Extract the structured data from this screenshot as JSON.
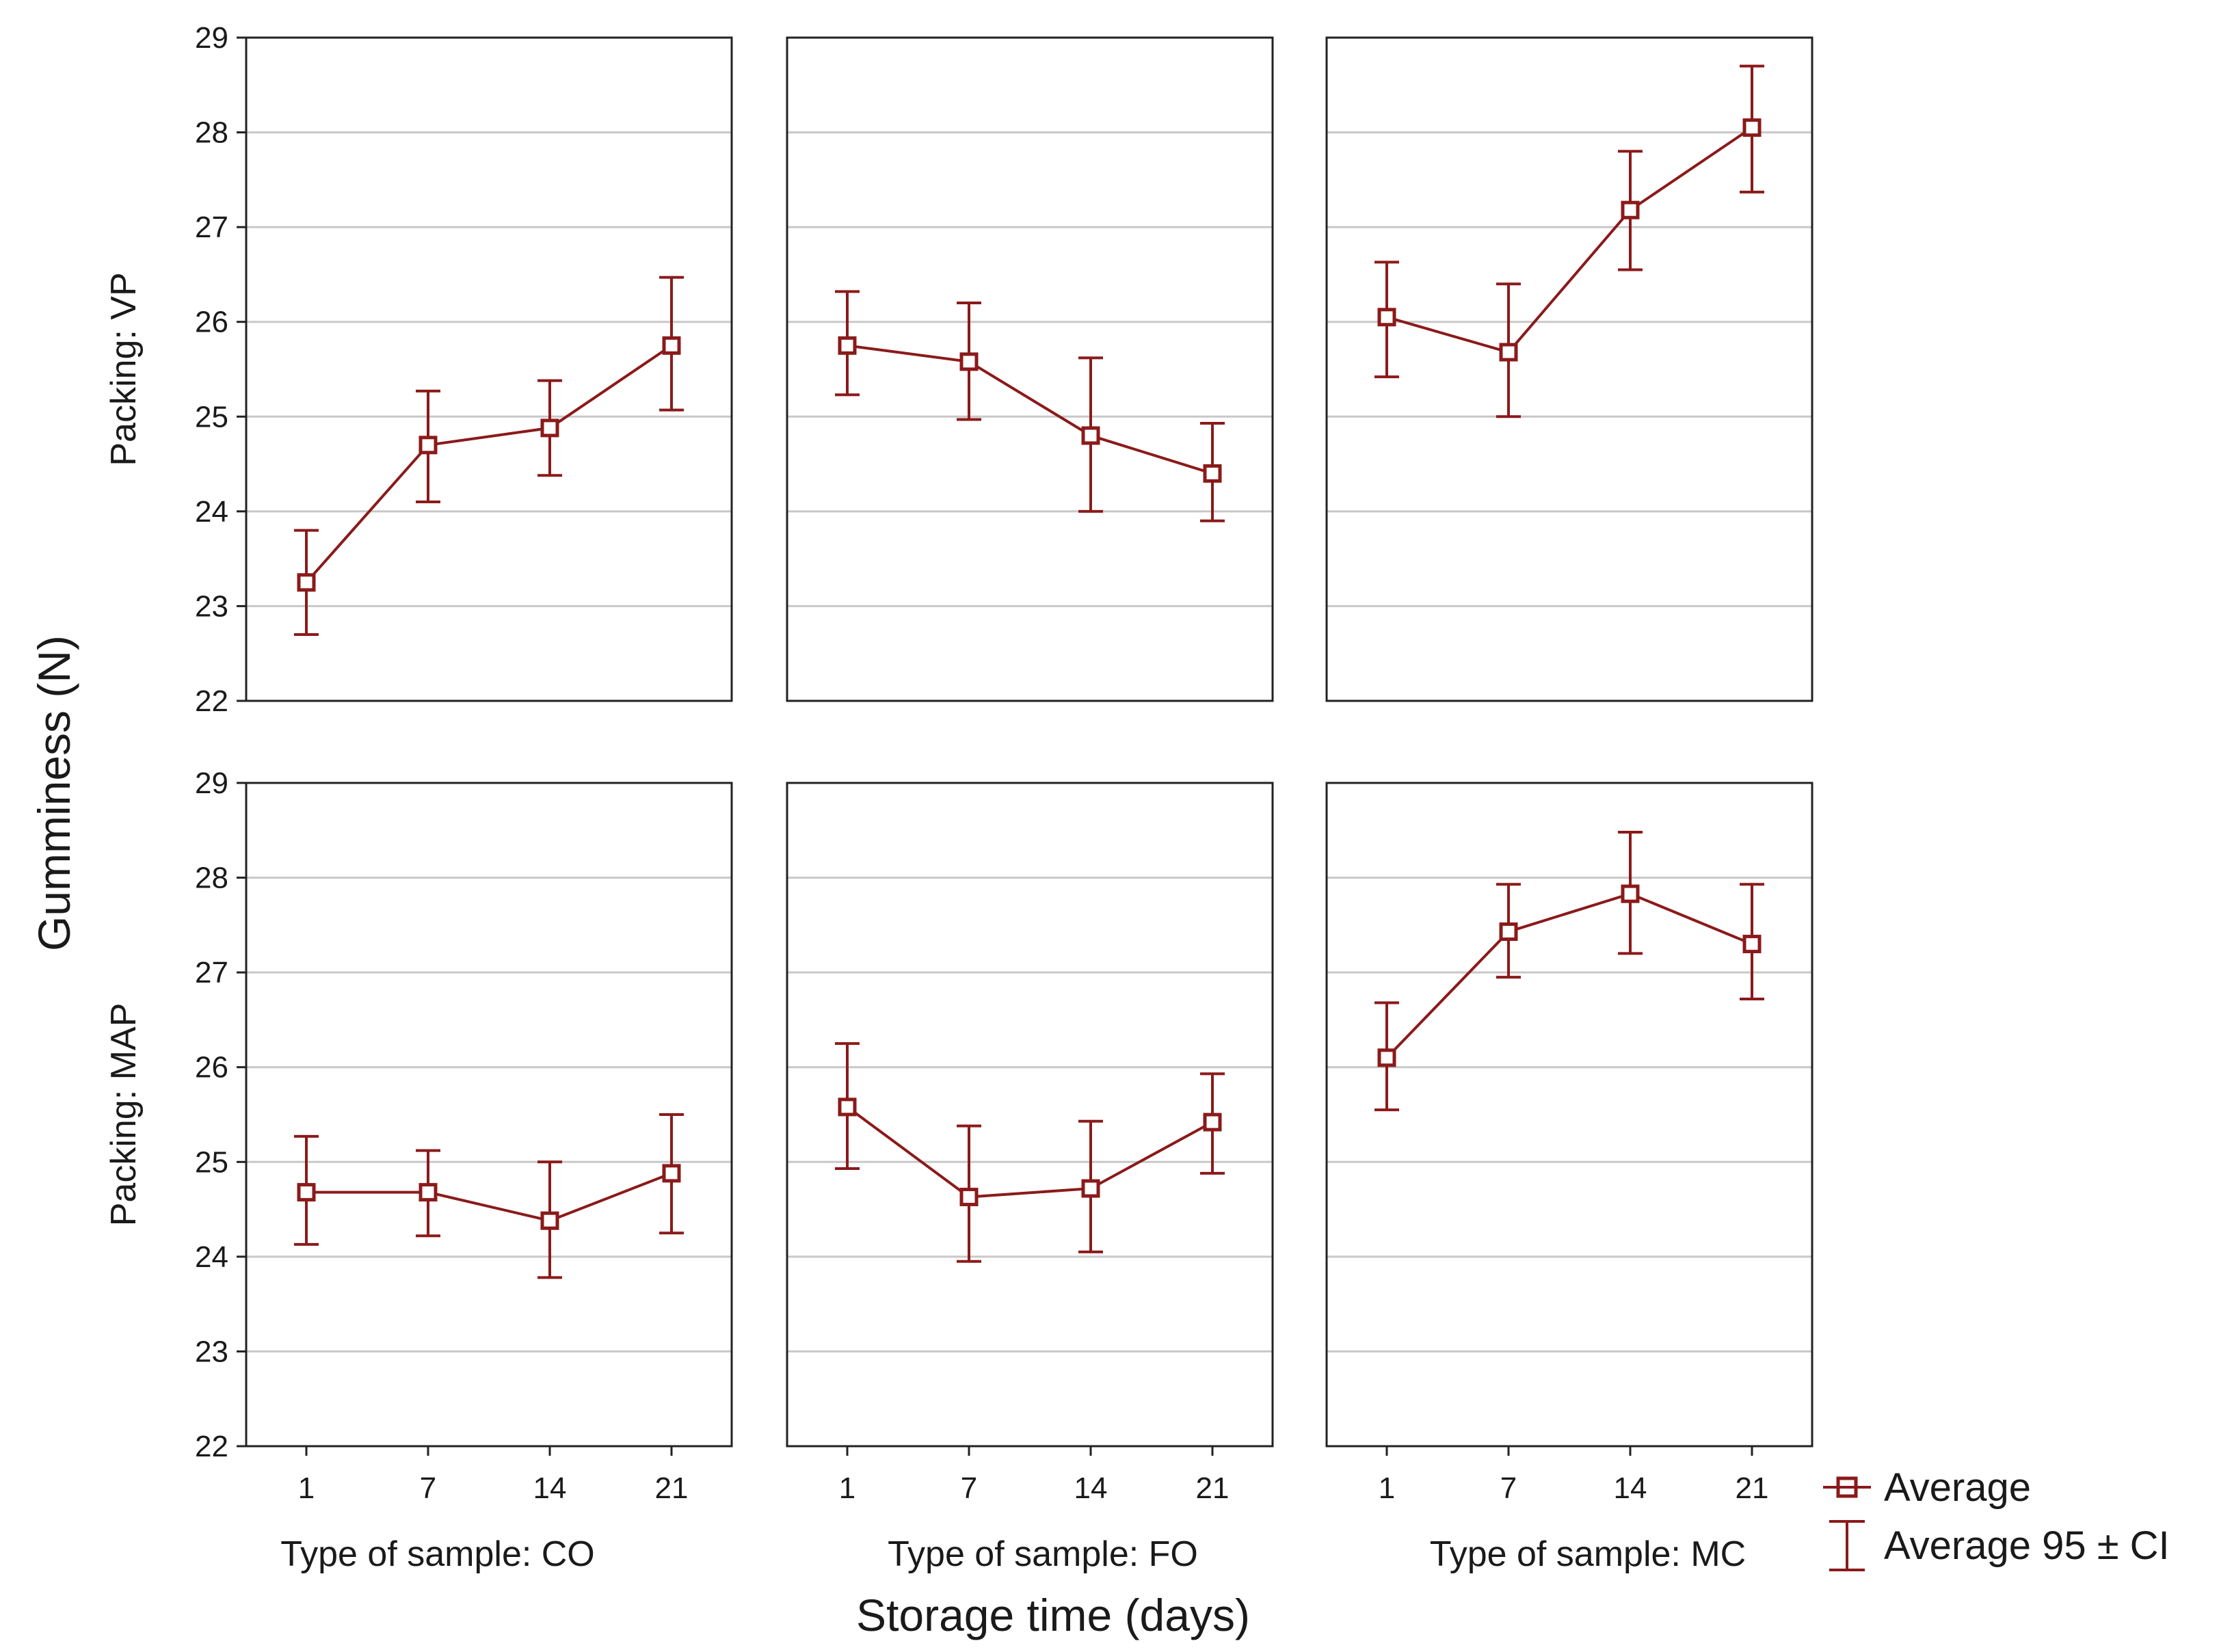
{
  "chart_data": {
    "type": "line",
    "ylabel": "Gumminess (N)",
    "xlabel": "Storage time (days)",
    "ylim": [
      22,
      29
    ],
    "yticks": [
      22,
      23,
      24,
      25,
      26,
      27,
      28,
      29
    ],
    "categories": [
      "1",
      "7",
      "14",
      "21"
    ],
    "colors": {
      "series": "#8b1a1a",
      "grid": "#c8c8c8",
      "frame": "#222222"
    },
    "columns": [
      "Type of sample: CO",
      "Type of sample: FO",
      "Type of sample: MC"
    ],
    "rows": [
      "Packing: VP",
      "Packing: MAP"
    ],
    "panels": [
      {
        "row": 0,
        "col": 0,
        "values": [
          23.25,
          24.7,
          24.88,
          25.75
        ],
        "ci_low": [
          22.7,
          24.1,
          24.38,
          25.07
        ],
        "ci_high": [
          23.8,
          25.27,
          25.38,
          26.47
        ]
      },
      {
        "row": 0,
        "col": 1,
        "values": [
          25.75,
          25.58,
          24.8,
          24.4
        ],
        "ci_low": [
          25.23,
          24.97,
          24.0,
          23.9
        ],
        "ci_high": [
          26.32,
          26.2,
          25.62,
          24.93
        ]
      },
      {
        "row": 0,
        "col": 2,
        "values": [
          26.05,
          25.68,
          27.18,
          28.05
        ],
        "ci_low": [
          25.42,
          25.0,
          26.55,
          27.37
        ],
        "ci_high": [
          26.63,
          26.4,
          27.8,
          28.7
        ]
      },
      {
        "row": 1,
        "col": 0,
        "values": [
          24.68,
          24.68,
          24.38,
          24.88
        ],
        "ci_low": [
          24.13,
          24.22,
          23.78,
          24.25
        ],
        "ci_high": [
          25.27,
          25.12,
          25.0,
          25.5
        ]
      },
      {
        "row": 1,
        "col": 1,
        "values": [
          25.58,
          24.63,
          24.72,
          25.42
        ],
        "ci_low": [
          24.93,
          23.95,
          24.05,
          24.88
        ],
        "ci_high": [
          26.25,
          25.38,
          25.43,
          25.93
        ]
      },
      {
        "row": 1,
        "col": 2,
        "values": [
          26.1,
          27.43,
          27.83,
          27.3
        ],
        "ci_low": [
          25.55,
          26.95,
          27.2,
          26.72
        ],
        "ci_high": [
          26.68,
          27.93,
          28.48,
          27.93
        ]
      }
    ],
    "legend": {
      "position": "bottom-right",
      "mean": "Average",
      "ci": "Average 95 ± CI"
    }
  }
}
